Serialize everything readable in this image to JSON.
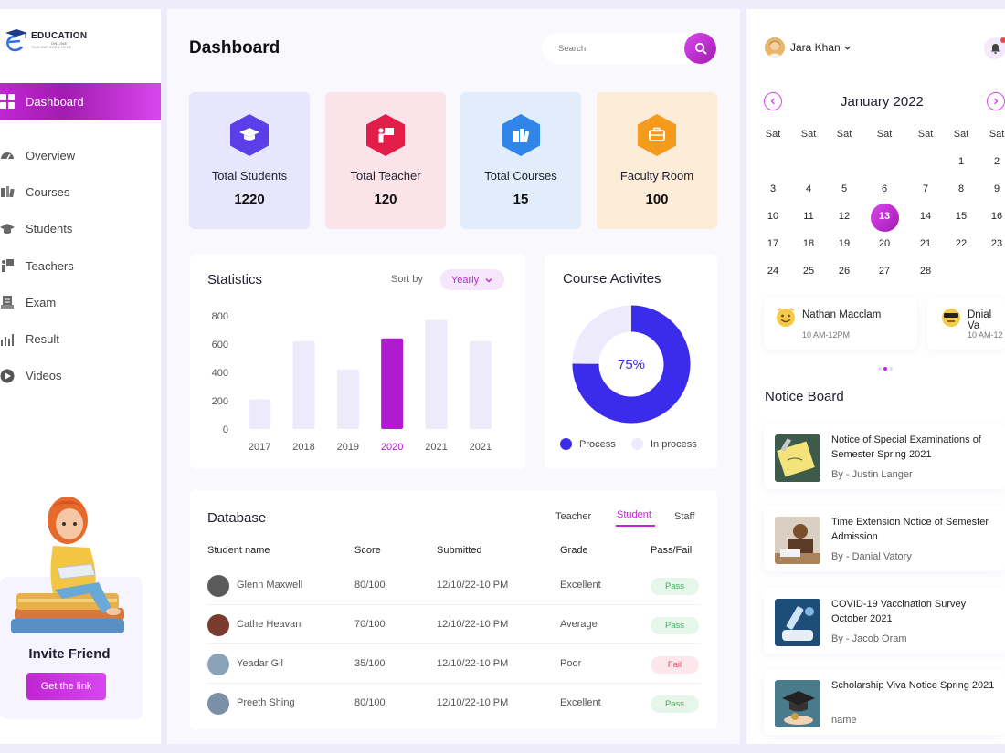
{
  "brand": {
    "line1": "EDUCATION",
    "line2": "ONLINE",
    "line3": "TAGLINE GOES HERE"
  },
  "nav": {
    "active": "Dashboard",
    "items": [
      "Overview",
      "Courses",
      "Students",
      "Teachers",
      "Exam",
      "Result",
      "Videos"
    ]
  },
  "invite": {
    "title": "Invite Friend",
    "button": "Get the link"
  },
  "header": {
    "title": "Dashboard",
    "search_placeholder": "Search"
  },
  "stats": [
    {
      "label": "Total Students",
      "value": "1220",
      "bg": "#e8e6fc",
      "icon_bg": "#5b3ee8",
      "icon": "graduation-cap-icon"
    },
    {
      "label": "Total Teacher",
      "value": "120",
      "bg": "#fbe3ea",
      "icon_bg": "#e11d48",
      "icon": "teacher-board-icon"
    },
    {
      "label": "Total Courses",
      "value": "15",
      "bg": "#e1edfb",
      "icon_bg": "#2f86e8",
      "icon": "books-icon"
    },
    {
      "label": "Faculty Room",
      "value": "100",
      "bg": "#fdecd8",
      "icon_bg": "#f49a1c",
      "icon": "faculty-room-icon"
    }
  ],
  "statistics": {
    "title": "Statistics",
    "sort_label": "Sort by",
    "sort_value": "Yearly"
  },
  "chart_data": {
    "type": "bar",
    "categories": [
      "2017",
      "2018",
      "2019",
      "2020",
      "2021",
      "2021"
    ],
    "values": [
      210,
      620,
      420,
      640,
      770,
      620
    ],
    "highlight_index": 3,
    "yticks": [
      "0",
      "200",
      "400",
      "600",
      "800"
    ],
    "ylim": [
      0,
      800
    ],
    "colors": {
      "bar": "#eceafb",
      "highlight": "#b01bd0"
    }
  },
  "course": {
    "title": "Course Activites",
    "percent_label": "75%",
    "percent": 75,
    "legend": [
      "Process",
      "In process"
    ],
    "colors": {
      "process": "#3b2bea",
      "in_process": "#eceafb"
    }
  },
  "database": {
    "title": "Database",
    "tabs": [
      "Teacher",
      "Student",
      "Staff"
    ],
    "active_tab": "Student",
    "columns": [
      "Student name",
      "Score",
      "Submitted",
      "Grade",
      "Pass/Fail"
    ],
    "rows": [
      {
        "name": "Glenn Maxwell",
        "score": "80/100",
        "submitted": "12/10/22-10 PM",
        "grade": "Excellent",
        "status": "Pass"
      },
      {
        "name": "Cathe Heavan",
        "score": "70/100",
        "submitted": "12/10/22-10 PM",
        "grade": "Average",
        "status": "Pass"
      },
      {
        "name": "Yeadar Gil",
        "score": "35/100",
        "submitted": "12/10/22-10 PM",
        "grade": "Poor",
        "status": "Fail"
      },
      {
        "name": "Preeth Shing",
        "score": "80/100",
        "submitted": "12/10/22-10 PM",
        "grade": "Excellent",
        "status": "Pass"
      }
    ]
  },
  "user": {
    "name": "Jara Khan"
  },
  "calendar": {
    "title": "January 2022",
    "weekdays": [
      "Sat",
      "Sat",
      "Sat",
      "Sat",
      "Sat",
      "Sat",
      "Sat"
    ],
    "weeks": [
      [
        "",
        "",
        "",
        "",
        "",
        "1",
        "2"
      ],
      [
        "3",
        "4",
        "5",
        "6",
        "7",
        "8",
        "9"
      ],
      [
        "10",
        "11",
        "12",
        "13",
        "14",
        "15",
        "16"
      ],
      [
        "17",
        "18",
        "19",
        "20",
        "21",
        "22",
        "23"
      ],
      [
        "24",
        "25",
        "26",
        "27",
        "28",
        "",
        ""
      ]
    ],
    "selected": "13"
  },
  "schedule": [
    {
      "name": "Nathan Macclam",
      "time": "10 AM-12PM"
    },
    {
      "name": "Dnial Va",
      "time": "10 AM-12"
    }
  ],
  "notice_board": {
    "title": "Notice Board",
    "items": [
      {
        "title": "Notice of Special Examinations of Semester Spring 2021",
        "by": "By - Justin Langer"
      },
      {
        "title": "Time Extension Notice of Semester Admission",
        "by": "By - Danial Vatory"
      },
      {
        "title": "COVID-19 Vaccination Survey October 2021",
        "by": "By - Jacob Oram"
      },
      {
        "title": "Scholarship Viva Notice Spring 2021",
        "by": "name"
      }
    ]
  }
}
